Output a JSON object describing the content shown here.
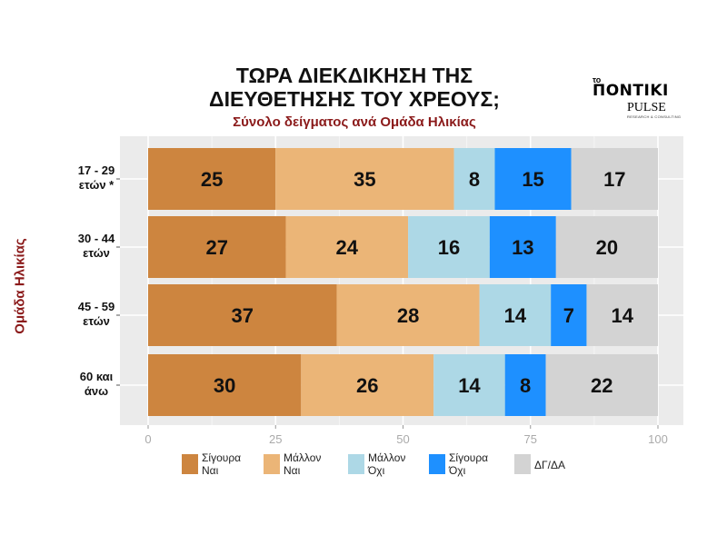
{
  "header": {
    "title_line1": "ΤΩΡΑ ΔΙΕΚΔΙΚΗΣΗ ΤΗΣ",
    "title_line2": "ΔΙΕΥΘΕΤΗΣΗΣ ΤΟΥ ΧΡΕΟΥΣ;",
    "subtitle": "Σύνολο δείγματος ανά Ομάδα Ηλικίας"
  },
  "logo": {
    "prefix": "το",
    "brand": "ΠΟΝΤΙΚΙ",
    "pulse": "PULSE",
    "pulse_sub": "RESEARCH & CONSULTING"
  },
  "colors": {
    "sigoura_nai": "#cd853f",
    "mallon_nai": "#ebb577",
    "mallon_ochi": "#add8e6",
    "sigoura_ochi": "#1e90ff",
    "dg_da": "#d3d3d3",
    "panel": "#ebebeb"
  },
  "chart_data": {
    "type": "bar",
    "orientation": "horizontal",
    "stacked": true,
    "ylabel": "Ομάδα Ηλικίας",
    "categories": [
      "17 - 29 ετών *",
      "30 - 44 ετών",
      "45 - 59 ετών",
      "60 και άνω"
    ],
    "category_lines": [
      [
        "17 - 29",
        "ετών *"
      ],
      [
        "30 - 44",
        "ετών"
      ],
      [
        "45 - 59",
        "ετών"
      ],
      [
        "60 και",
        "άνω"
      ]
    ],
    "series": [
      {
        "name": "Σίγουρα Ναι",
        "lines": [
          "Σίγουρα",
          "Ναι"
        ],
        "values": [
          25,
          27,
          37,
          30
        ]
      },
      {
        "name": "Μάλλον Ναι",
        "lines": [
          "Μάλλον",
          "Ναι"
        ],
        "values": [
          35,
          24,
          28,
          26
        ]
      },
      {
        "name": "Μάλλον Όχι",
        "lines": [
          "Μάλλον",
          "Όχι"
        ],
        "values": [
          8,
          16,
          14,
          14
        ]
      },
      {
        "name": "Σίγουρα Όχι",
        "lines": [
          "Σίγουρα",
          "Όχι"
        ],
        "values": [
          15,
          13,
          7,
          8
        ]
      },
      {
        "name": "ΔΓ/ΔΑ",
        "lines": [
          "ΔΓ/ΔΑ"
        ],
        "values": [
          17,
          20,
          14,
          22
        ]
      }
    ],
    "xlim": [
      0,
      100
    ],
    "xticks": [
      0,
      25,
      50,
      75,
      100
    ],
    "grid": true,
    "legend_position": "bottom"
  }
}
